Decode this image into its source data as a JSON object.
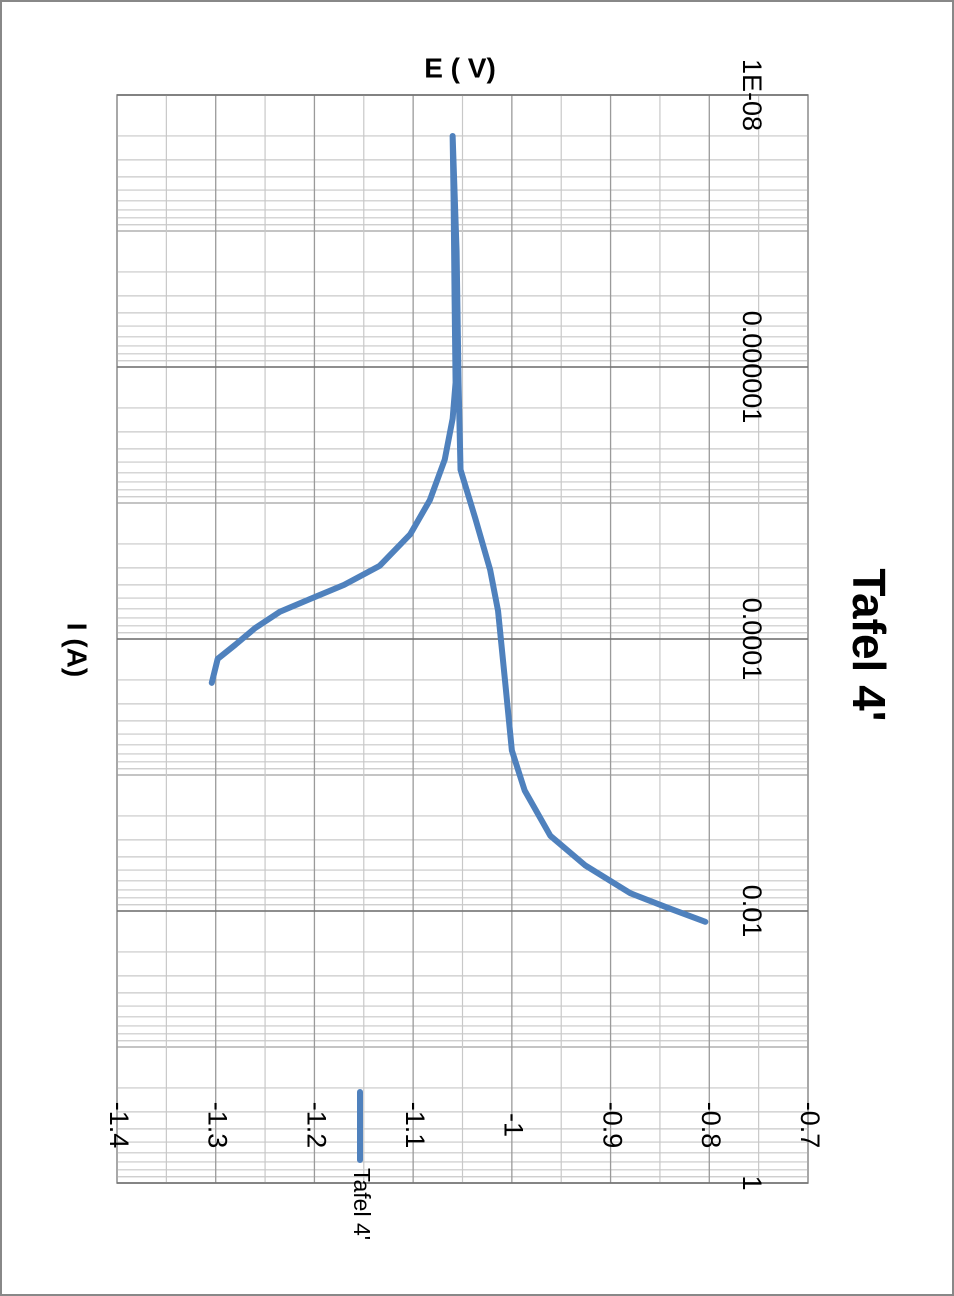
{
  "chart_data": {
    "type": "line",
    "title": "Tafel 4'",
    "x_label": "I (A)",
    "y_label": "E ( V)",
    "x": [
      0.00021,
      0.00014,
      0.00011,
      8.3e-05,
      6.3e-05,
      5.1e-05,
      4e-05,
      2.9e-05,
      1.7e-05,
      9.5e-06,
      4.8e-06,
      2.4e-06,
      1.3e-06,
      3.2e-07,
      5.9e-08,
      2e-08,
      1.4e-07,
      1.3e-06,
      5.7e-06,
      1.3e-05,
      3.1e-05,
      6.2e-05,
      0.0002,
      0.00066,
      0.0013,
      0.0028,
      0.0046,
      0.0074,
      0.0096,
      0.012
    ],
    "series": [
      {
        "name": "Tafel 4'",
        "color": "#4f81bd",
        "values": [
          -1.304,
          -1.298,
          -1.28,
          -1.26,
          -1.235,
          -1.205,
          -1.17,
          -1.134,
          -1.103,
          -1.083,
          -1.068,
          -1.06,
          -1.057,
          -1.058,
          -1.059,
          -1.06,
          -1.056,
          -1.054,
          -1.052,
          -1.037,
          -1.022,
          -1.014,
          -1.007,
          -1.0,
          -0.987,
          -0.961,
          -0.926,
          -0.88,
          -0.84,
          -0.804
        ]
      }
    ],
    "xscale": "log",
    "xlim": [
      1e-08,
      1
    ],
    "xticks": [
      {
        "value": 1e-08,
        "label": "1E-08"
      },
      1e-06,
      0.0001,
      0.01,
      1
    ],
    "ylim": [
      -1.4,
      -0.7
    ],
    "yticks": [
      -1.4,
      -1.3,
      -1.2,
      -1.1,
      -1,
      -0.9,
      -0.8,
      -0.7
    ],
    "grid": true,
    "legend": "right"
  }
}
